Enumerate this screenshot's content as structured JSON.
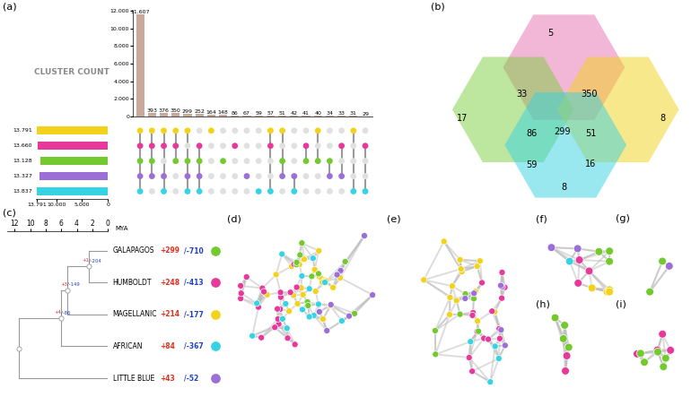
{
  "chart_data": [
    {
      "type": "bar",
      "label": "(a)",
      "values": [
        11607,
        393,
        376,
        350,
        299,
        252,
        164,
        148,
        86,
        67,
        59,
        57,
        51,
        42,
        41,
        40,
        34,
        33,
        31,
        29
      ],
      "value_labels": [
        "11.607",
        "393",
        "376",
        "350",
        "299",
        "252",
        "164",
        "148",
        "86",
        "67",
        "59",
        "57",
        "51",
        "42",
        "41",
        "40",
        "34",
        "33",
        "31",
        "29"
      ],
      "data_labels": true,
      "color": "#c9a99c",
      "ylim": [
        0,
        12000
      ],
      "yticks": [
        0,
        {
          "value": 2000,
          "label": "2.000"
        },
        {
          "value": 4000,
          "label": "4.000"
        },
        {
          "value": 6000,
          "label": "6.000"
        },
        {
          "value": 8000,
          "label": "8.000"
        },
        {
          "value": 10000,
          "label": "10.000"
        },
        {
          "value": 12000,
          "label": "12.000"
        }
      ],
      "membership": [
        [
          1,
          1,
          1,
          1,
          1
        ],
        [
          1,
          1,
          1,
          1,
          0
        ],
        [
          1,
          1,
          0,
          1,
          1
        ],
        [
          1,
          1,
          1,
          0,
          0
        ],
        [
          1,
          0,
          1,
          1,
          1
        ],
        [
          0,
          1,
          1,
          1,
          1
        ],
        [
          1,
          0,
          0,
          0,
          0
        ],
        [
          0,
          0,
          1,
          0,
          0
        ],
        [
          0,
          1,
          0,
          0,
          0
        ],
        [
          0,
          0,
          0,
          1,
          0
        ],
        [
          0,
          0,
          0,
          0,
          1
        ],
        [
          1,
          1,
          0,
          0,
          1
        ],
        [
          1,
          0,
          1,
          1,
          0
        ],
        [
          0,
          0,
          0,
          1,
          1
        ],
        [
          0,
          1,
          1,
          0,
          0
        ],
        [
          1,
          0,
          1,
          0,
          0
        ],
        [
          0,
          0,
          1,
          1,
          0
        ],
        [
          0,
          1,
          0,
          1,
          0
        ],
        [
          1,
          0,
          0,
          0,
          1
        ],
        [
          0,
          1,
          0,
          0,
          1
        ]
      ]
    },
    {
      "type": "bar",
      "orientation": "horizontal",
      "title": "CLUSTER COUNT",
      "values": [
        13791,
        13660,
        13128,
        13327,
        13837
      ],
      "value_labels": [
        "13.791",
        "13.660",
        "13.128",
        "13.327",
        "13.837"
      ],
      "data_labels": true,
      "colors": [
        "#f2d21b",
        "#e6399b",
        "#74c92f",
        "#9b6fd6",
        "#35d3e3"
      ],
      "xlim": [
        0,
        14000
      ],
      "xticks": [
        {
          "value": 13791,
          "label": "13.791"
        },
        {
          "value": 10000,
          "label": "10.000"
        },
        {
          "value": 5000,
          "label": "5.000"
        },
        0
      ]
    },
    {
      "type": "venn",
      "label": "(b)",
      "colors": [
        "#e66fb0",
        "#7ccf3f",
        "#f2d21b",
        "#35d3e3"
      ],
      "regions": [
        {
          "sets": [
            0
          ],
          "value": 5
        },
        {
          "sets": [
            0,
            1
          ],
          "value": 33
        },
        {
          "sets": [
            0,
            2
          ],
          "value": 350
        },
        {
          "sets": [
            1
          ],
          "value": 17
        },
        {
          "sets": [
            0,
            1,
            3
          ],
          "value": 86
        },
        {
          "sets": [
            0,
            1,
            2,
            3
          ],
          "value": 299
        },
        {
          "sets": [
            0,
            2,
            3
          ],
          "value": 51
        },
        {
          "sets": [
            2
          ],
          "value": 8
        },
        {
          "sets": [
            1,
            3
          ],
          "value": 59
        },
        {
          "sets": [
            2,
            3
          ],
          "value": 16
        },
        {
          "sets": [
            3
          ],
          "value": 8
        }
      ]
    },
    {
      "type": "tree",
      "label": "(c)",
      "xlabel": "MYA",
      "xlim": [
        13,
        0
      ],
      "xticks": [
        12,
        10,
        8,
        6,
        4,
        2,
        0
      ],
      "leaves": [
        {
          "name": "GALAPAGOS",
          "gain": "+299",
          "loss": "/-710",
          "color": "#74c92f"
        },
        {
          "name": "HUMBOLDT",
          "gain": "+248",
          "loss": "/-413",
          "color": "#e6399b"
        },
        {
          "name": "MAGELLANIC",
          "gain": "+214",
          "loss": "/-177",
          "color": "#f2d21b"
        },
        {
          "name": "AFRICAN",
          "gain": "+84",
          "loss": "/-367",
          "color": "#35d3e3"
        },
        {
          "name": "LITTLE BLUE",
          "gain": "+43",
          "loss": "/-52",
          "color": "#9b6fd6"
        }
      ],
      "nodes": [
        {
          "children": [
            0,
            1
          ],
          "age": 2.4,
          "gain": "+1",
          "loss": "/-204"
        },
        {
          "children": [
            5,
            2
          ],
          "age": 5.2,
          "gain": "+3",
          "loss": "/-149"
        },
        {
          "children": [
            6,
            3
          ],
          "age": 6.0,
          "gain": "+4",
          "loss": "/-86"
        },
        {
          "children": [
            7,
            4
          ],
          "age": 11.5
        }
      ]
    },
    {
      "type": "network",
      "label": "(d)",
      "series": [
        {
          "color": "#f2d21b",
          "count": 22
        },
        {
          "color": "#e6399b",
          "count": 20
        },
        {
          "color": "#74c92f",
          "count": 10
        },
        {
          "color": "#9b6fd6",
          "count": 8
        },
        {
          "color": "#35d3e3",
          "count": 15
        }
      ]
    },
    {
      "type": "network",
      "label": "(e)",
      "series": [
        {
          "color": "#f2d21b",
          "count": 14
        },
        {
          "color": "#e6399b",
          "count": 14
        },
        {
          "color": "#74c92f",
          "count": 6
        },
        {
          "color": "#9b6fd6",
          "count": 6
        },
        {
          "color": "#35d3e3",
          "count": 4
        }
      ]
    },
    {
      "type": "network",
      "label": "(f)",
      "series": [
        {
          "color": "#f2d21b",
          "count": 4
        },
        {
          "color": "#e6399b",
          "count": 3
        },
        {
          "color": "#74c92f",
          "count": 3
        },
        {
          "color": "#9b6fd6",
          "count": 2
        },
        {
          "color": "#35d3e3",
          "count": 1
        }
      ]
    },
    {
      "type": "network",
      "label": "(g)",
      "series": [
        {
          "color": "#74c92f",
          "count": 2
        },
        {
          "color": "#9b6fd6",
          "count": 1
        }
      ]
    },
    {
      "type": "network",
      "label": "(h)",
      "series": [
        {
          "color": "#e6399b",
          "count": 2
        },
        {
          "color": "#74c92f",
          "count": 4
        }
      ]
    },
    {
      "type": "network",
      "label": "(i)",
      "series": [
        {
          "color": "#e6399b",
          "count": 4
        },
        {
          "color": "#74c92f",
          "count": 5
        }
      ]
    }
  ]
}
